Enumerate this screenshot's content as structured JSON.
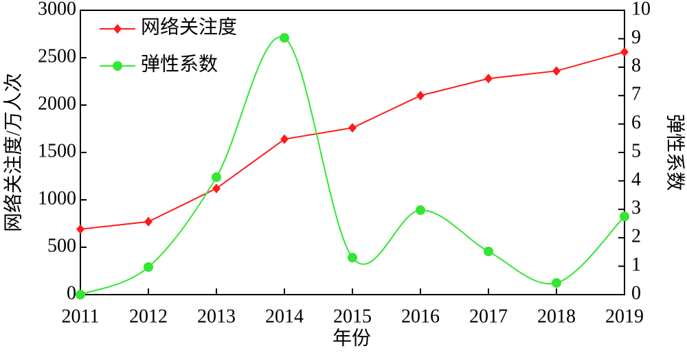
{
  "chart_data": {
    "type": "line",
    "x": [
      2011,
      2012,
      2013,
      2014,
      2015,
      2016,
      2017,
      2018,
      2019
    ],
    "xlim": [
      2011,
      2019
    ],
    "xticks": [
      2011,
      2012,
      2013,
      2014,
      2015,
      2016,
      2017,
      2018,
      2019
    ],
    "xlabel": "年份",
    "ylabel": "网络关注度/万人次",
    "y2label": "弹性系数",
    "ylim": [
      0,
      3000
    ],
    "yticks": [
      0,
      500,
      1000,
      1500,
      2000,
      2500,
      3000
    ],
    "y2lim": [
      0,
      10
    ],
    "y2ticks": [
      0,
      1,
      2,
      3,
      4,
      5,
      6,
      7,
      8,
      9,
      10
    ],
    "legend": "upper left",
    "series": [
      {
        "name": "网络关注度",
        "color": "#ff1a1a",
        "marker": "diamond",
        "smooth": false,
        "values": [
          690,
          770,
          1120,
          1640,
          1760,
          2100,
          2280,
          2360,
          2560
        ]
      },
      {
        "name": "弹性系数",
        "color": "#33e633",
        "marker": "circle",
        "smooth": true,
        "axis": "y2",
        "values": [
          0,
          0.97,
          4.13,
          9.03,
          1.3,
          2.97,
          1.52,
          0.41,
          2.75
        ]
      }
    ]
  }
}
